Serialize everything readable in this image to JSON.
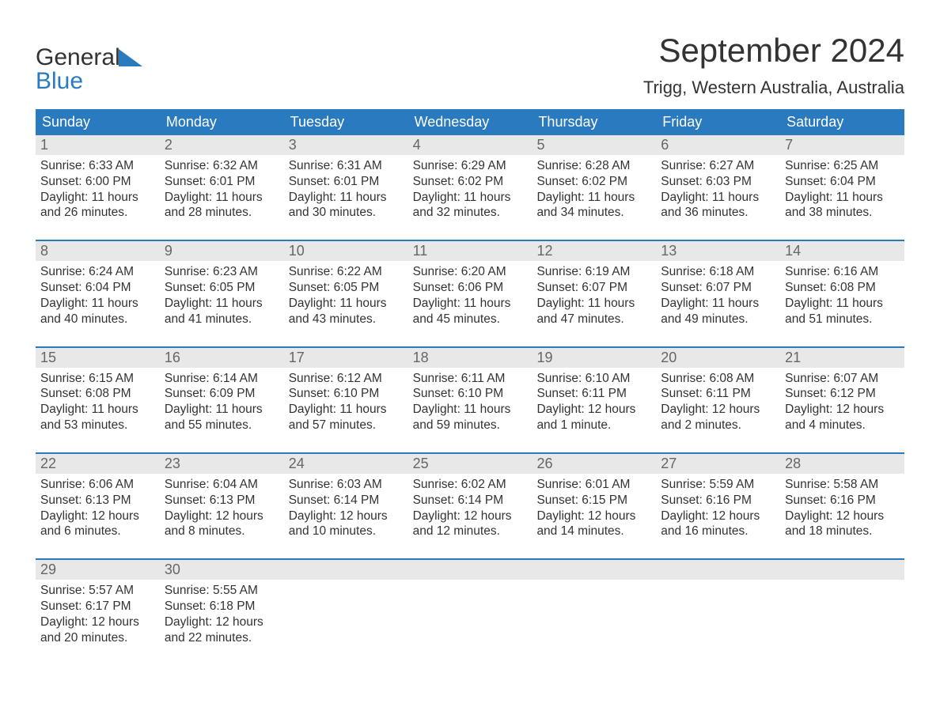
{
  "brand": {
    "word1": "General",
    "word2": "Blue"
  },
  "title": "September 2024",
  "location": "Trigg, Western Australia, Australia",
  "colors": {
    "accent": "#2a7abf",
    "header_bg": "#2a7abf",
    "daynum_bg": "#e8e8e8",
    "daynum_text": "#666666",
    "body_text": "#333333",
    "background": "#ffffff"
  },
  "typography": {
    "title_fontsize": 42,
    "location_fontsize": 22,
    "weekday_fontsize": 18,
    "daynum_fontsize": 18,
    "body_fontsize": 15.5,
    "font_family": "Arial"
  },
  "weekdays": [
    "Sunday",
    "Monday",
    "Tuesday",
    "Wednesday",
    "Thursday",
    "Friday",
    "Saturday"
  ],
  "labels": {
    "sunrise": "Sunrise:",
    "sunset": "Sunset:",
    "daylight": "Daylight:"
  },
  "weeks": [
    [
      {
        "n": "1",
        "sunrise": "6:33 AM",
        "sunset": "6:00 PM",
        "daylight": "11 hours and 26 minutes."
      },
      {
        "n": "2",
        "sunrise": "6:32 AM",
        "sunset": "6:01 PM",
        "daylight": "11 hours and 28 minutes."
      },
      {
        "n": "3",
        "sunrise": "6:31 AM",
        "sunset": "6:01 PM",
        "daylight": "11 hours and 30 minutes."
      },
      {
        "n": "4",
        "sunrise": "6:29 AM",
        "sunset": "6:02 PM",
        "daylight": "11 hours and 32 minutes."
      },
      {
        "n": "5",
        "sunrise": "6:28 AM",
        "sunset": "6:02 PM",
        "daylight": "11 hours and 34 minutes."
      },
      {
        "n": "6",
        "sunrise": "6:27 AM",
        "sunset": "6:03 PM",
        "daylight": "11 hours and 36 minutes."
      },
      {
        "n": "7",
        "sunrise": "6:25 AM",
        "sunset": "6:04 PM",
        "daylight": "11 hours and 38 minutes."
      }
    ],
    [
      {
        "n": "8",
        "sunrise": "6:24 AM",
        "sunset": "6:04 PM",
        "daylight": "11 hours and 40 minutes."
      },
      {
        "n": "9",
        "sunrise": "6:23 AM",
        "sunset": "6:05 PM",
        "daylight": "11 hours and 41 minutes."
      },
      {
        "n": "10",
        "sunrise": "6:22 AM",
        "sunset": "6:05 PM",
        "daylight": "11 hours and 43 minutes."
      },
      {
        "n": "11",
        "sunrise": "6:20 AM",
        "sunset": "6:06 PM",
        "daylight": "11 hours and 45 minutes."
      },
      {
        "n": "12",
        "sunrise": "6:19 AM",
        "sunset": "6:07 PM",
        "daylight": "11 hours and 47 minutes."
      },
      {
        "n": "13",
        "sunrise": "6:18 AM",
        "sunset": "6:07 PM",
        "daylight": "11 hours and 49 minutes."
      },
      {
        "n": "14",
        "sunrise": "6:16 AM",
        "sunset": "6:08 PM",
        "daylight": "11 hours and 51 minutes."
      }
    ],
    [
      {
        "n": "15",
        "sunrise": "6:15 AM",
        "sunset": "6:08 PM",
        "daylight": "11 hours and 53 minutes."
      },
      {
        "n": "16",
        "sunrise": "6:14 AM",
        "sunset": "6:09 PM",
        "daylight": "11 hours and 55 minutes."
      },
      {
        "n": "17",
        "sunrise": "6:12 AM",
        "sunset": "6:10 PM",
        "daylight": "11 hours and 57 minutes."
      },
      {
        "n": "18",
        "sunrise": "6:11 AM",
        "sunset": "6:10 PM",
        "daylight": "11 hours and 59 minutes."
      },
      {
        "n": "19",
        "sunrise": "6:10 AM",
        "sunset": "6:11 PM",
        "daylight": "12 hours and 1 minute."
      },
      {
        "n": "20",
        "sunrise": "6:08 AM",
        "sunset": "6:11 PM",
        "daylight": "12 hours and 2 minutes."
      },
      {
        "n": "21",
        "sunrise": "6:07 AM",
        "sunset": "6:12 PM",
        "daylight": "12 hours and 4 minutes."
      }
    ],
    [
      {
        "n": "22",
        "sunrise": "6:06 AM",
        "sunset": "6:13 PM",
        "daylight": "12 hours and 6 minutes."
      },
      {
        "n": "23",
        "sunrise": "6:04 AM",
        "sunset": "6:13 PM",
        "daylight": "12 hours and 8 minutes."
      },
      {
        "n": "24",
        "sunrise": "6:03 AM",
        "sunset": "6:14 PM",
        "daylight": "12 hours and 10 minutes."
      },
      {
        "n": "25",
        "sunrise": "6:02 AM",
        "sunset": "6:14 PM",
        "daylight": "12 hours and 12 minutes."
      },
      {
        "n": "26",
        "sunrise": "6:01 AM",
        "sunset": "6:15 PM",
        "daylight": "12 hours and 14 minutes."
      },
      {
        "n": "27",
        "sunrise": "5:59 AM",
        "sunset": "6:16 PM",
        "daylight": "12 hours and 16 minutes."
      },
      {
        "n": "28",
        "sunrise": "5:58 AM",
        "sunset": "6:16 PM",
        "daylight": "12 hours and 18 minutes."
      }
    ],
    [
      {
        "n": "29",
        "sunrise": "5:57 AM",
        "sunset": "6:17 PM",
        "daylight": "12 hours and 20 minutes."
      },
      {
        "n": "30",
        "sunrise": "5:55 AM",
        "sunset": "6:18 PM",
        "daylight": "12 hours and 22 minutes."
      },
      null,
      null,
      null,
      null,
      null
    ]
  ]
}
